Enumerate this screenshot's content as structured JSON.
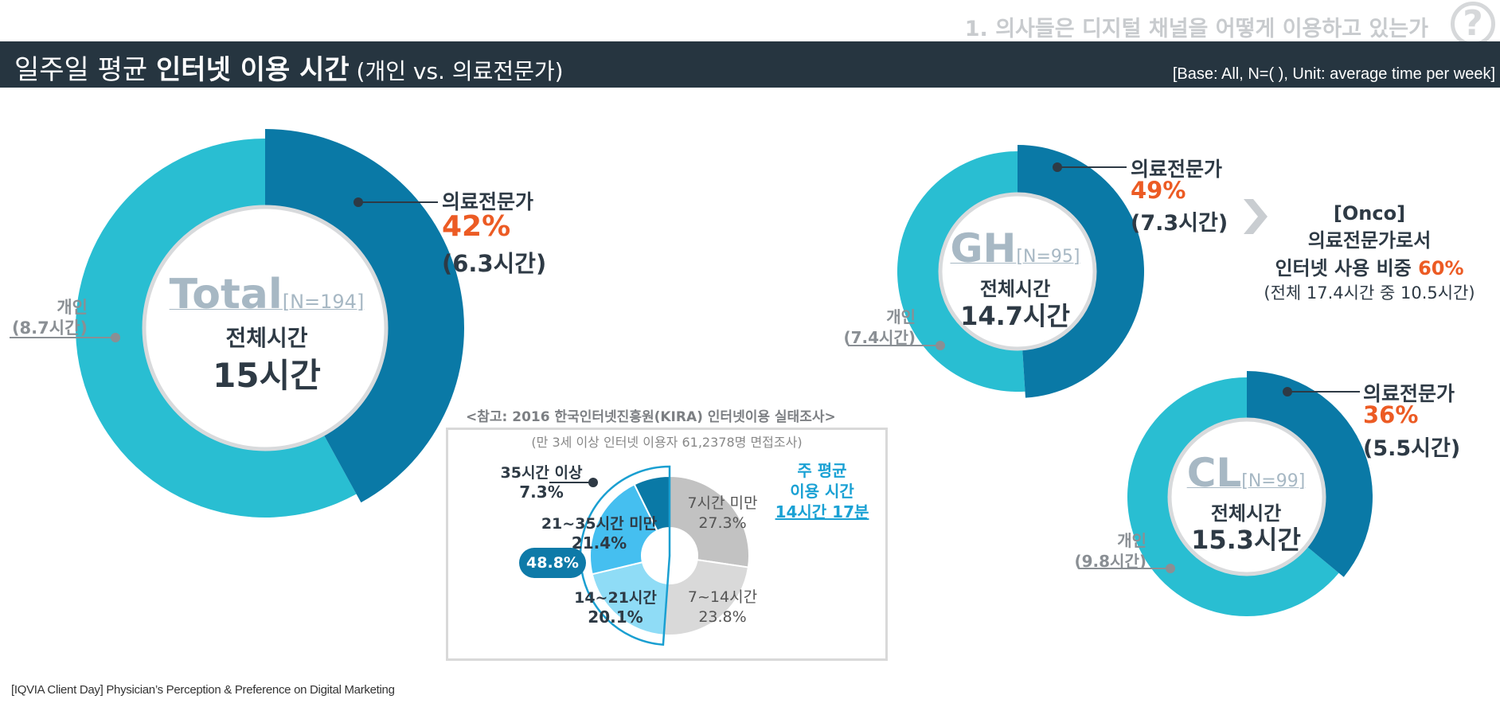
{
  "header": {
    "section": "1. 의사들은 디지털 채널을 어떻게 이용하고 있는가",
    "help_icon": "?",
    "title_plain": "일주일 평균 ",
    "title_bold": "인터넷 이용 시간",
    "title_suffix": " (개인 vs. 의료전문가)",
    "base": "[Base: All, N=(   ), Unit: average time per week]"
  },
  "footer": "[IQVIA Client Day] Physician’s Perception & Preference on Digital Marketing",
  "colors": {
    "dark_blue": "#0a79a6",
    "light_blue": "#29bed2",
    "orange": "#ec5b24",
    "navy": "#263540"
  },
  "chart_data": [
    {
      "type": "pie",
      "name": "Total",
      "n_label": "[N=194]",
      "center_label": "전체시간",
      "center_value": "15시간",
      "slices": [
        {
          "label": "의료전문가",
          "percent": 42,
          "percent_label": "42%",
          "hours_label": "(6.3시간)",
          "color": "#0a79a6"
        },
        {
          "label": "개인",
          "percent": 58,
          "hours_label": "(8.7시간)",
          "color": "#29bed2"
        }
      ]
    },
    {
      "type": "pie",
      "name": "GH",
      "n_label": "[N=95]",
      "center_label": "전체시간",
      "center_value": "14.7시간",
      "slices": [
        {
          "label": "의료전문가",
          "percent": 49,
          "percent_label": "49%",
          "hours_label": "(7.3시간)",
          "color": "#0a79a6"
        },
        {
          "label": "개인",
          "percent": 51,
          "hours_label": "(7.4시간)",
          "color": "#29bed2"
        }
      ]
    },
    {
      "type": "pie",
      "name": "CL",
      "n_label": "[N=99]",
      "center_label": "전체시간",
      "center_value": "15.3시간",
      "slices": [
        {
          "label": "의료전문가",
          "percent": 36,
          "percent_label": "36%",
          "hours_label": "(5.5시간)",
          "color": "#0a79a6"
        },
        {
          "label": "개인",
          "percent": 64,
          "hours_label": "(9.8시간)",
          "color": "#29bed2"
        }
      ]
    },
    {
      "type": "pie",
      "name": "KIRA reference",
      "title": "<참고: 2016 한국인터넷진흥원(KIRA) 인터넷이용 실태조사>",
      "subtitle": "(만 3세 이상 인터넷 이용자 61,2378명 면접조사)",
      "slices": [
        {
          "label": "7시간 미만",
          "value": 27.3,
          "value_label": "27.3%",
          "color": "#c2c2c2"
        },
        {
          "label": "7~14시간",
          "value": 23.8,
          "value_label": "23.8%",
          "color": "#d9d9d9"
        },
        {
          "label": "14~21시간",
          "value": 20.1,
          "value_label": "20.1%",
          "color": "#8fdcf6"
        },
        {
          "label": "21~35시간 미만",
          "value": 21.4,
          "value_label": "21.4%",
          "color": "#45bff0"
        },
        {
          "label": "35시간 이상",
          "value": 7.3,
          "value_label": "7.3%",
          "color": "#0a79a6"
        }
      ],
      "group_badge": "48.8%",
      "avg_label": [
        "주 평균",
        "이용 시간"
      ],
      "avg_value": "14시간 17분"
    }
  ],
  "onco": {
    "line1": "[Onco]",
    "line2": "의료전문가로서",
    "line3_text": "인터넷 사용 비중 ",
    "line3_pct": "60%",
    "line4": "(전체 17.4시간 중 10.5시간)"
  }
}
